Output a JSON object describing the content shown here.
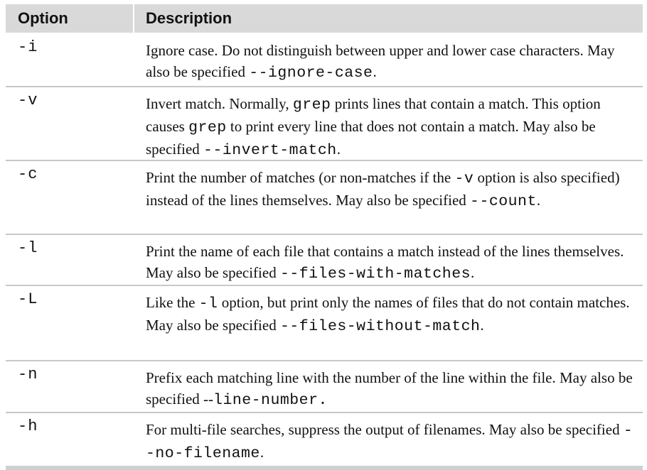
{
  "header": {
    "option": "Option",
    "description": "Description"
  },
  "rows": [
    {
      "option": "-i",
      "parts": [
        "Ignore case.  Do not distinguish between upper and lower case characters.  May also be specified ",
        "--ignore-case",
        "."
      ]
    },
    {
      "option": "-v",
      "parts": [
        "Invert match.  Normally, ",
        "grep",
        " prints lines that contain a match. This option causes ",
        "grep",
        " to print every line that does not contain a match.  May also be specified ",
        "--invert-match",
        "."
      ]
    },
    {
      "option": "-c",
      "parts": [
        "Print the number of matches (or non-matches if the ",
        "-v",
        "  option is also specified) instead of the lines themselves.  May also be specified ",
        "--count",
        "."
      ]
    },
    {
      "option": "-l",
      "parts": [
        "Print the name of each file that contains a match instead of the lines themselves.  May also be specified ",
        "--files-with-matches",
        "."
      ]
    },
    {
      "option": "-L",
      "parts": [
        "Like the ",
        "-l",
        " option, but print only the names of files that do not contain matches.  May also be specified ",
        "--files-without-match",
        "."
      ]
    },
    {
      "option": "-n",
      "parts": [
        "Prefix each matching line with the number of the line within the file.  May also be specified --",
        "line-number.",
        ""
      ]
    },
    {
      "option": "-h",
      "parts": [
        "For multi-file searches, suppress the output of filenames.  May also be specified ",
        "--no-filename",
        "."
      ]
    }
  ]
}
